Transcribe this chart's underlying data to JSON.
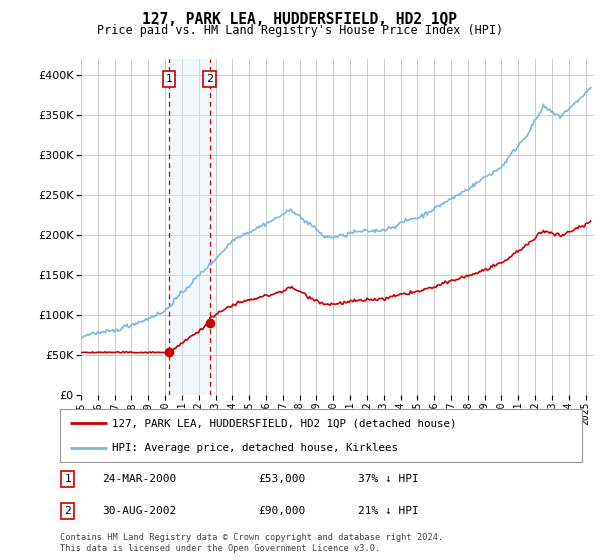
{
  "title": "127, PARK LEA, HUDDERSFIELD, HD2 1QP",
  "subtitle": "Price paid vs. HM Land Registry's House Price Index (HPI)",
  "legend_line1": "127, PARK LEA, HUDDERSFIELD, HD2 1QP (detached house)",
  "legend_line2": "HPI: Average price, detached house, Kirklees",
  "annotation1_label": "1",
  "annotation1_date": "24-MAR-2000",
  "annotation1_price": "£53,000",
  "annotation1_hpi": "37% ↓ HPI",
  "annotation2_label": "2",
  "annotation2_date": "30-AUG-2002",
  "annotation2_price": "£90,000",
  "annotation2_hpi": "21% ↓ HPI",
  "footer": "Contains HM Land Registry data © Crown copyright and database right 2024.\nThis data is licensed under the Open Government Licence v3.0.",
  "sale1_year": 2000.23,
  "sale1_price": 53000,
  "sale2_year": 2002.66,
  "sale2_price": 90000,
  "hpi_color": "#7ab8e8",
  "sale_color": "#cc0000",
  "shade_color": "#d8edf8",
  "background_color": "#ffffff",
  "grid_color": "#cccccc",
  "ylim_max": 420000,
  "xlim_start": 1995,
  "xlim_end": 2025.5
}
